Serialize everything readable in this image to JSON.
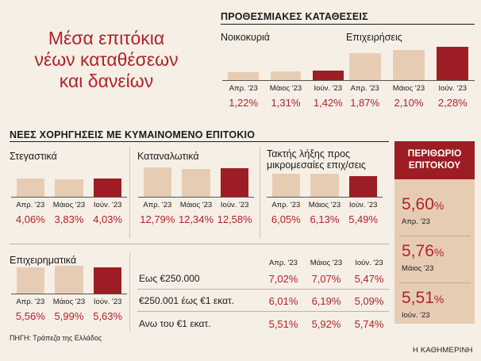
{
  "title_lines": [
    "Μέσα επιτόκια",
    "νέων καταθέσεων",
    "και δανείων"
  ],
  "source": "ΠΗΓΗ: Τράπεζα της Ελλάδος",
  "brand": "Η ΚΑΘΗΜΕΡΙΝΗ",
  "colors": {
    "accent": "#b0232b",
    "bar_light": "#e7ccb4",
    "bar_dark": "#9c1d24"
  },
  "chart_data": [
    {
      "type": "bar",
      "section": "ΠΡΟΘΕΣΜΙΑΚΕΣ ΚΑΤΑΘΕΣΕΙΣ",
      "title": "Νοικοκυριά",
      "categories": [
        "Απρ. '23",
        "Μάιος '23",
        "Ιούν. '23"
      ],
      "values": [
        1.22,
        1.31,
        1.42
      ],
      "labels": [
        "1,22%",
        "1,31%",
        "1,42%"
      ]
    },
    {
      "type": "bar",
      "section": "ΠΡΟΘΕΣΜΙΑΚΕΣ ΚΑΤΑΘΕΣΕΙΣ",
      "title": "Επιχειρήσεις",
      "categories": [
        "Απρ. '23",
        "Μάιος '23",
        "Ιούν. '23"
      ],
      "values": [
        1.87,
        2.1,
        2.28
      ],
      "labels": [
        "1,87%",
        "2,10%",
        "2,28%"
      ]
    },
    {
      "type": "bar",
      "section": "ΝΕΕΣ ΧΟΡΗΓΗΣΕΙΣ ΜΕ ΚΥΜΑΙΝΟΜΕΝΟ ΕΠΙΤΟΚΙΟ",
      "title": "Στεγαστικά",
      "categories": [
        "Απρ. '23",
        "Μάιος '23",
        "Ιούν. '23"
      ],
      "values": [
        4.06,
        3.83,
        4.03
      ],
      "labels": [
        "4,06%",
        "3,83%",
        "4,03%"
      ]
    },
    {
      "type": "bar",
      "section": "ΝΕΕΣ ΧΟΡΗΓΗΣΕΙΣ ΜΕ ΚΥΜΑΙΝΟΜΕΝΟ ΕΠΙΤΟΚΙΟ",
      "title": "Καταναλωτικά",
      "categories": [
        "Απρ. '23",
        "Μάιος '23",
        "Ιούν. '23"
      ],
      "values": [
        12.79,
        12.34,
        12.58
      ],
      "labels": [
        "12,79%",
        "12,34%",
        "12,58%"
      ]
    },
    {
      "type": "bar",
      "section": "ΝΕΕΣ ΧΟΡΗΓΗΣΕΙΣ ΜΕ ΚΥΜΑΙΝΟΜΕΝΟ ΕΠΙΤΟΚΙΟ",
      "title_lines": [
        "Τακτής λήξης προς",
        "μικρομεσαίες επιχ/σεις"
      ],
      "categories": [
        "Απρ. '23",
        "Μάιος '23",
        "Ιούν. '23"
      ],
      "values": [
        6.05,
        6.13,
        5.49
      ],
      "labels": [
        "6,05%",
        "6,13%",
        "5,49%"
      ]
    },
    {
      "type": "bar",
      "section": "ΝΕΕΣ ΧΟΡΗΓΗΣΕΙΣ ΜΕ ΚΥΜΑΙΝΟΜΕΝΟ ΕΠΙΤΟΚΙΟ",
      "title": "Επιχειρηματικά",
      "categories": [
        "Απρ. '23",
        "Μάιος '23",
        "Ιούν. '23"
      ],
      "values": [
        5.56,
        5.99,
        5.63
      ],
      "labels": [
        "5,56%",
        "5,99%",
        "5,63%"
      ]
    },
    {
      "type": "table",
      "columns": [
        "Απρ. '23",
        "Μάιος '23",
        "Ιούν. '23"
      ],
      "rows": [
        {
          "label": "Εως €250.000",
          "values": [
            "7,02%",
            "7,07%",
            "5,47%"
          ]
        },
        {
          "label": "€250.001 έως €1 εκατ.",
          "values": [
            "6,01%",
            "6,19%",
            "5,09%"
          ]
        },
        {
          "label": "Ανω του €1 εκατ.",
          "values": [
            "5,51%",
            "5,92%",
            "5,74%"
          ]
        }
      ]
    }
  ],
  "margin_panel": {
    "title_lines": [
      "ΠΕΡΙΘΩΡΙΟ",
      "ΕΠΙΤΟΚΙΟΥ"
    ],
    "items": [
      {
        "num": "5,60",
        "pct": "%",
        "label": "Απρ. '23"
      },
      {
        "num": "5,76",
        "pct": "%",
        "label": "Μάιος '23"
      },
      {
        "num": "5,51",
        "pct": "%",
        "label": "Ιούν. '23"
      }
    ]
  }
}
